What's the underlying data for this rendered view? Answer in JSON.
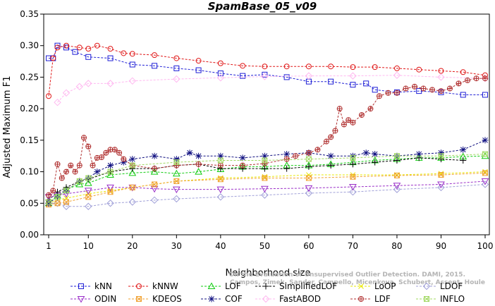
{
  "chart_data": {
    "type": "line",
    "title": "SpamBase_05_v09",
    "xlabel": "Neighborhood size",
    "ylabel": "Adjusted Maximum F1",
    "xlim": [
      1,
      100
    ],
    "ylim": [
      0,
      0.35
    ],
    "xticks": [
      "1",
      "10",
      "20",
      "30",
      "40",
      "50",
      "60",
      "70",
      "80",
      "90",
      "100"
    ],
    "yticks": [
      "0.00",
      "0.05",
      "0.10",
      "0.15",
      "0.20",
      "0.25",
      "0.30",
      "0.35"
    ],
    "grid": false,
    "legend_position": "bottom",
    "watermark": [
      "Campos, Zimek, Sander, Campello, Micenkova, Schubert, Assent, Houle",
      "On the Evaluation of Unsupervised Outlier Detection. DAMI, 2015."
    ],
    "series": [
      {
        "name": "kNN",
        "color": "#1f1fd6",
        "marker": "square",
        "x": [
          1,
          2,
          3,
          5,
          7,
          10,
          15,
          20,
          25,
          30,
          35,
          40,
          45,
          50,
          55,
          60,
          65,
          70,
          73,
          75,
          80,
          85,
          90,
          95,
          100
        ],
        "y": [
          0.28,
          0.28,
          0.3,
          0.297,
          0.29,
          0.282,
          0.28,
          0.27,
          0.268,
          0.264,
          0.261,
          0.256,
          0.252,
          0.254,
          0.25,
          0.243,
          0.243,
          0.238,
          0.24,
          0.23,
          0.226,
          0.228,
          0.226,
          0.222,
          0.222
        ]
      },
      {
        "name": "kNNW",
        "color": "#e01818",
        "marker": "circle",
        "x": [
          1,
          2,
          3,
          5,
          8,
          10,
          12,
          15,
          18,
          20,
          25,
          30,
          35,
          40,
          45,
          50,
          55,
          60,
          65,
          70,
          75,
          80,
          85,
          90,
          95,
          100
        ],
        "y": [
          0.22,
          0.28,
          0.297,
          0.3,
          0.297,
          0.295,
          0.3,
          0.295,
          0.288,
          0.287,
          0.285,
          0.28,
          0.276,
          0.272,
          0.268,
          0.267,
          0.267,
          0.267,
          0.267,
          0.266,
          0.266,
          0.264,
          0.262,
          0.26,
          0.258,
          0.253
        ]
      },
      {
        "name": "LOF",
        "color": "#11cc11",
        "marker": "triangle-up",
        "x": [
          1,
          3,
          5,
          8,
          10,
          15,
          20,
          25,
          30,
          35,
          40,
          45,
          50,
          55,
          60,
          65,
          70,
          75,
          80,
          85,
          90,
          95,
          100
        ],
        "y": [
          0.05,
          0.062,
          0.072,
          0.08,
          0.082,
          0.095,
          0.098,
          0.1,
          0.097,
          0.1,
          0.104,
          0.108,
          0.108,
          0.11,
          0.11,
          0.112,
          0.115,
          0.118,
          0.12,
          0.122,
          0.122,
          0.124,
          0.125
        ]
      },
      {
        "name": "SimplifiedLOF",
        "color": "#000000",
        "marker": "plus",
        "x": [
          1,
          3,
          5,
          8,
          10,
          15,
          20,
          25,
          30,
          35,
          40,
          45,
          50,
          55,
          60,
          65,
          70,
          75,
          80,
          85,
          90,
          95
        ],
        "y": [
          0.055,
          0.068,
          0.075,
          0.085,
          0.088,
          0.1,
          0.105,
          0.105,
          0.11,
          0.112,
          0.105,
          0.105,
          0.105,
          0.105,
          0.108,
          0.11,
          0.112,
          0.115,
          0.118,
          0.122,
          0.12,
          0.118
        ]
      },
      {
        "name": "LoOP",
        "color": "#e8e800",
        "marker": "x",
        "x": [
          1,
          3,
          5,
          10,
          15,
          20,
          25,
          30,
          40,
          50,
          60,
          70,
          80,
          90,
          100
        ],
        "y": [
          0.05,
          0.055,
          0.058,
          0.065,
          0.07,
          0.075,
          0.08,
          0.085,
          0.09,
          0.092,
          0.095,
          0.095,
          0.095,
          0.097,
          0.1
        ]
      },
      {
        "name": "LDOF",
        "color": "#a0a0d8",
        "marker": "diamond",
        "x": [
          1,
          3,
          5,
          10,
          15,
          20,
          25,
          30,
          40,
          50,
          60,
          70,
          80,
          90,
          100
        ],
        "y": [
          0.05,
          0.05,
          0.045,
          0.045,
          0.05,
          0.052,
          0.055,
          0.057,
          0.06,
          0.063,
          0.066,
          0.068,
          0.072,
          0.075,
          0.08
        ]
      },
      {
        "name": "ODIN",
        "color": "#9a2ec8",
        "marker": "triangle-down",
        "x": [
          1,
          3,
          5,
          10,
          15,
          20,
          25,
          30,
          40,
          50,
          60,
          70,
          80,
          90,
          100
        ],
        "y": [
          0.06,
          0.062,
          0.065,
          0.07,
          0.075,
          0.075,
          0.073,
          0.072,
          0.072,
          0.073,
          0.074,
          0.076,
          0.078,
          0.08,
          0.085
        ]
      },
      {
        "name": "KDEOS",
        "color": "#f0a030",
        "marker": "square-x",
        "x": [
          1,
          3,
          5,
          10,
          15,
          20,
          25,
          30,
          40,
          50,
          60,
          70,
          80,
          90,
          100
        ],
        "y": [
          0.048,
          0.05,
          0.052,
          0.06,
          0.068,
          0.075,
          0.08,
          0.085,
          0.088,
          0.09,
          0.09,
          0.092,
          0.094,
          0.095,
          0.098
        ]
      },
      {
        "name": "COF",
        "color": "#101080",
        "marker": "asterisk",
        "x": [
          1,
          3,
          5,
          8,
          10,
          12,
          15,
          18,
          20,
          25,
          30,
          33,
          35,
          40,
          45,
          50,
          55,
          60,
          65,
          70,
          73,
          75,
          80,
          85,
          90,
          95,
          100
        ],
        "y": [
          0.05,
          0.06,
          0.07,
          0.085,
          0.09,
          0.1,
          0.11,
          0.115,
          0.12,
          0.125,
          0.12,
          0.13,
          0.125,
          0.125,
          0.122,
          0.125,
          0.128,
          0.13,
          0.125,
          0.125,
          0.13,
          0.128,
          0.125,
          0.128,
          0.13,
          0.135,
          0.15
        ]
      },
      {
        "name": "FastABOD",
        "color": "#ffb8f0",
        "marker": "diamond",
        "x": [
          3,
          5,
          8,
          10,
          15,
          20,
          30,
          40,
          50,
          60,
          70,
          80,
          90,
          100
        ],
        "y": [
          0.21,
          0.225,
          0.235,
          0.24,
          0.24,
          0.244,
          0.247,
          0.249,
          0.251,
          0.252,
          0.252,
          0.253,
          0.25,
          0.248
        ]
      },
      {
        "name": "LDF",
        "color": "#b03030",
        "marker": "circle-plus",
        "x": [
          1,
          2,
          3,
          4,
          5,
          6,
          7,
          8,
          9,
          10,
          11,
          12,
          13,
          14,
          15,
          16,
          17,
          18,
          20,
          25,
          30,
          35,
          40,
          45,
          50,
          55,
          57,
          60,
          62,
          64,
          65,
          66,
          67,
          68,
          69,
          70,
          72,
          74,
          76,
          78,
          80,
          82,
          84,
          86,
          88,
          90,
          92,
          94,
          96,
          98,
          100
        ],
        "y": [
          0.063,
          0.07,
          0.112,
          0.09,
          0.1,
          0.11,
          0.1,
          0.11,
          0.154,
          0.14,
          0.11,
          0.122,
          0.123,
          0.13,
          0.135,
          0.135,
          0.13,
          0.12,
          0.11,
          0.105,
          0.11,
          0.112,
          0.11,
          0.11,
          0.113,
          0.12,
          0.125,
          0.13,
          0.135,
          0.148,
          0.155,
          0.165,
          0.2,
          0.175,
          0.182,
          0.178,
          0.19,
          0.2,
          0.22,
          0.225,
          0.225,
          0.232,
          0.235,
          0.232,
          0.23,
          0.228,
          0.232,
          0.24,
          0.245,
          0.248,
          0.248
        ]
      },
      {
        "name": "INFLO",
        "color": "#a0d860",
        "marker": "square-x",
        "x": [
          1,
          3,
          5,
          8,
          10,
          15,
          20,
          30,
          40,
          50,
          60,
          70,
          80,
          90,
          100
        ],
        "y": [
          0.052,
          0.06,
          0.07,
          0.085,
          0.09,
          0.1,
          0.11,
          0.115,
          0.118,
          0.118,
          0.12,
          0.122,
          0.125,
          0.125,
          0.128
        ]
      }
    ]
  }
}
